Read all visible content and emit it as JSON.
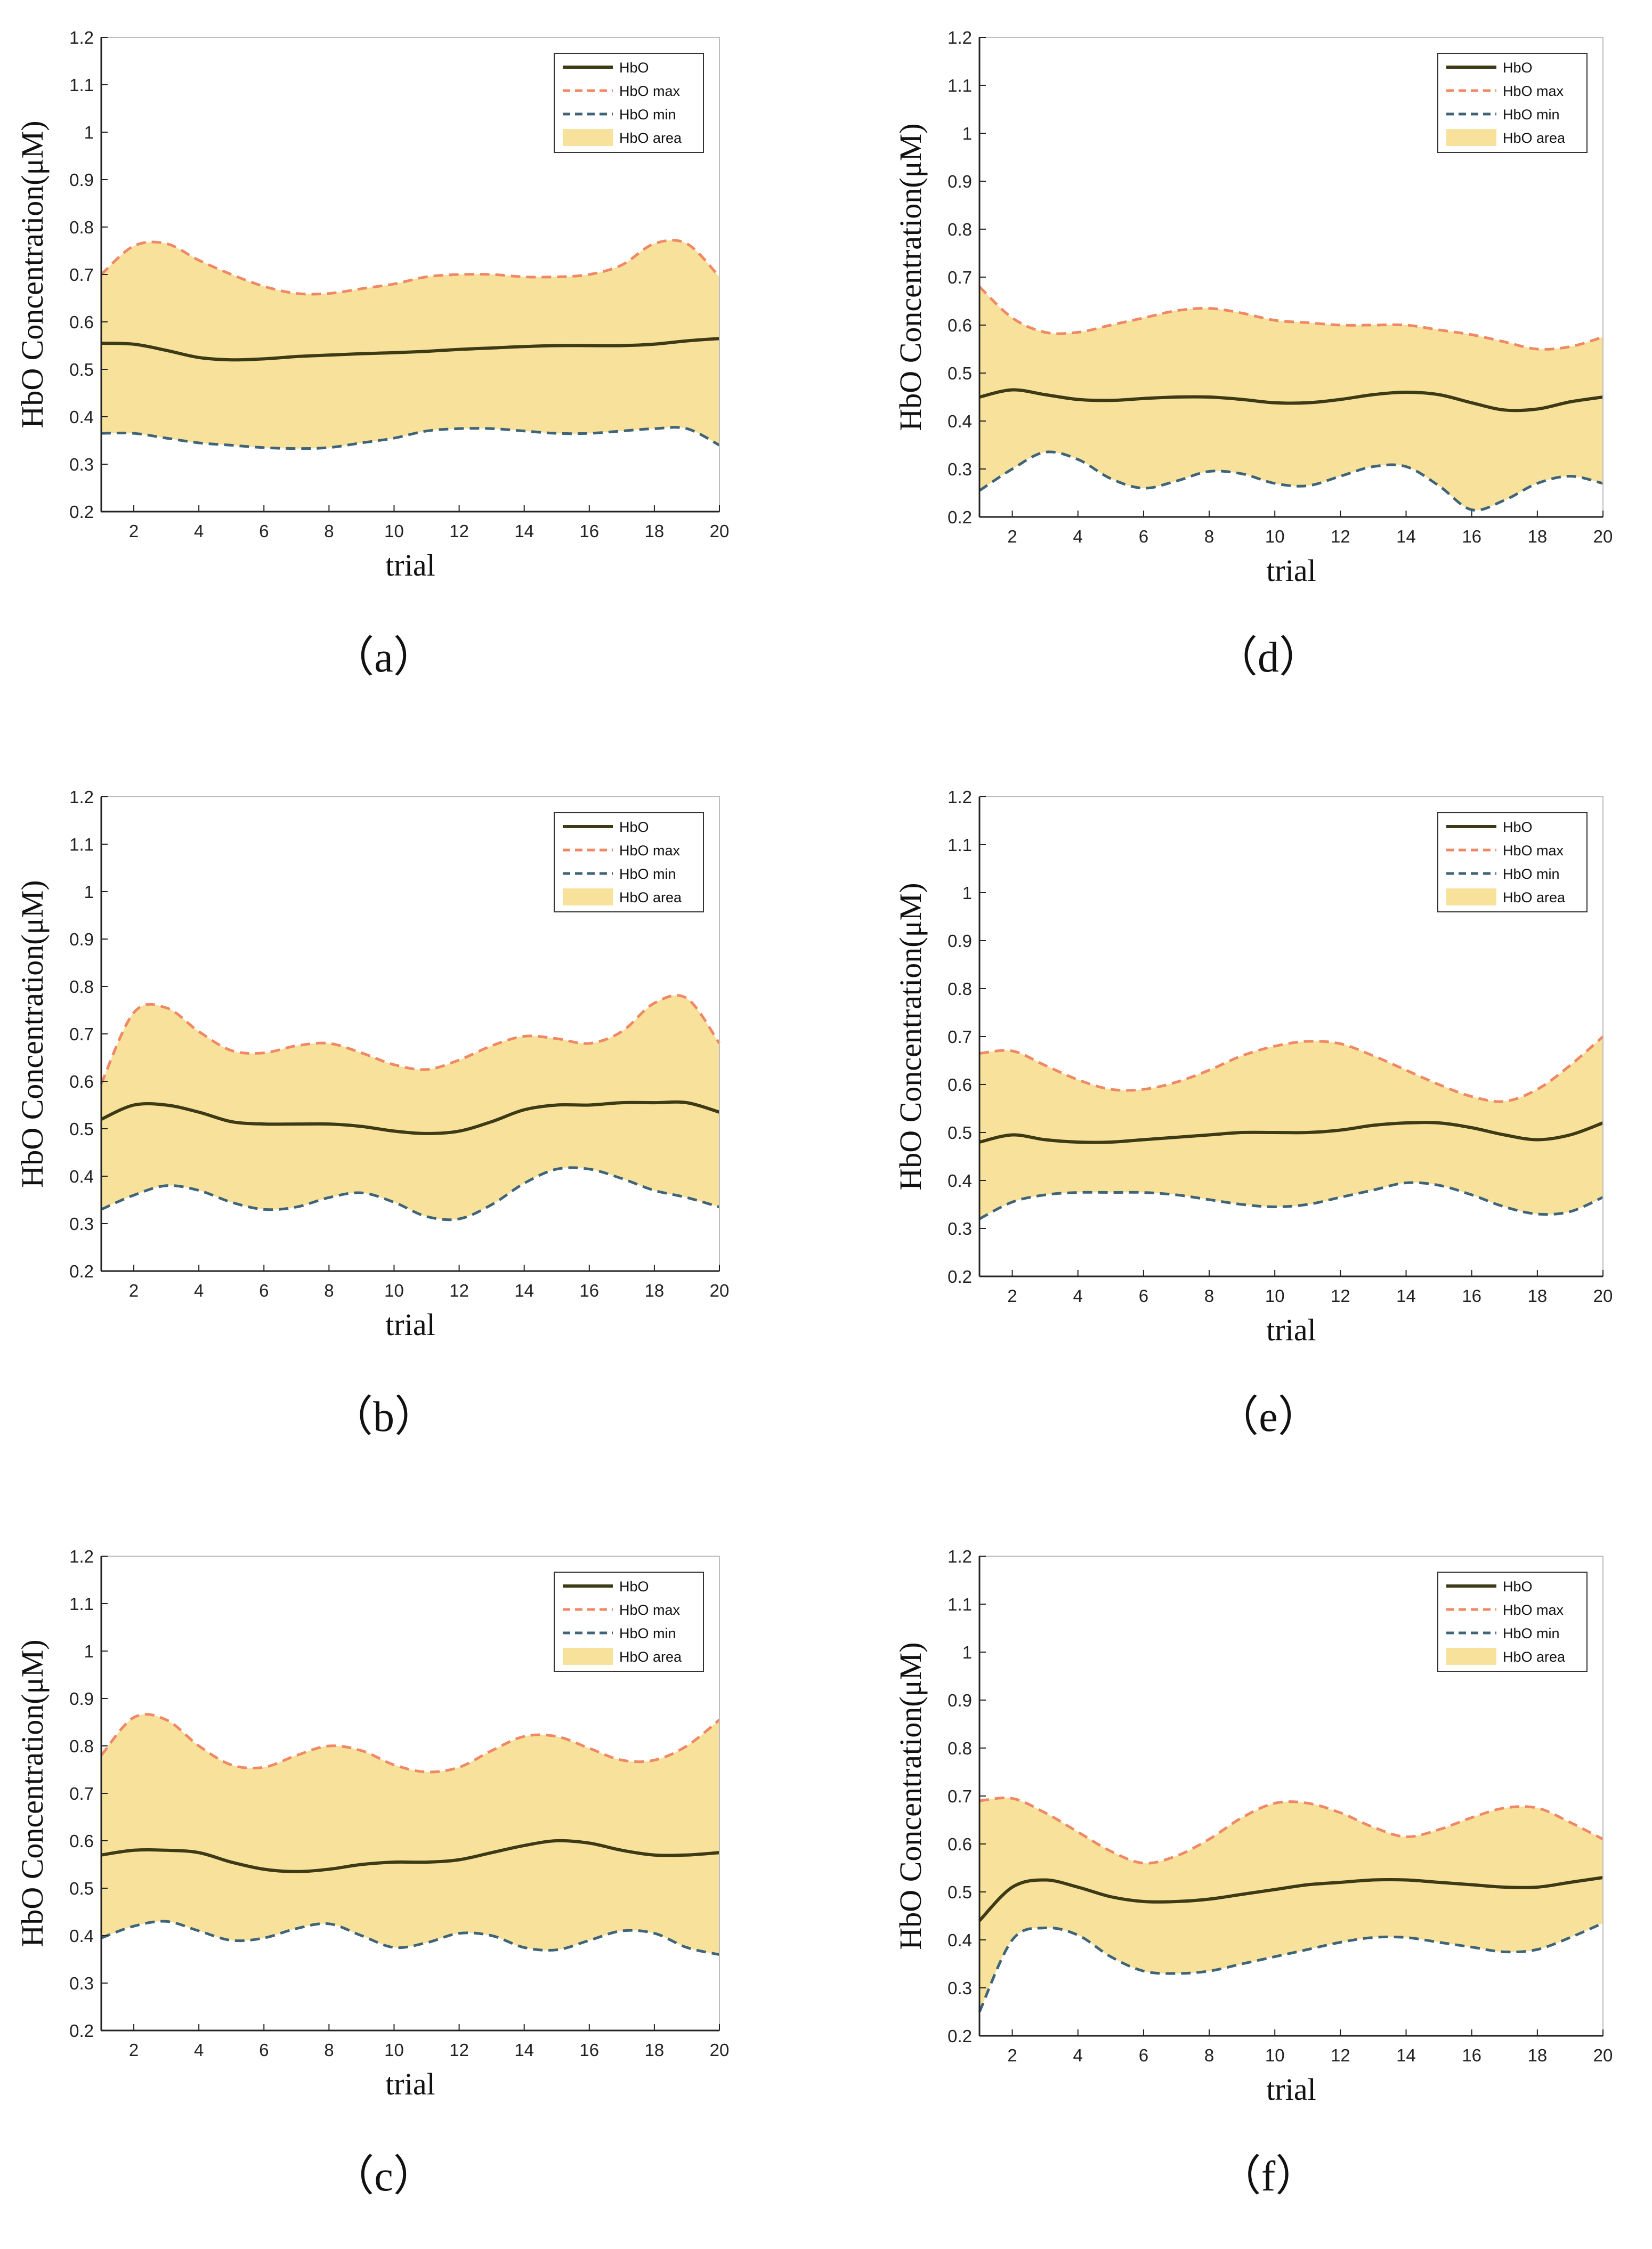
{
  "figure_title": "",
  "colors": {
    "mean": "#3d3a16",
    "max": "#f08866",
    "min": "#3f6377",
    "area": "#f8e29b",
    "axis": "#222222"
  },
  "chart_data": [
    {
      "type": "line",
      "label": "（a）",
      "xlabel": "trial",
      "ylabel": "HbO Concentration(μM)",
      "xlim": [
        1,
        20
      ],
      "ylim": [
        0.2,
        1.2
      ],
      "xticks": [
        2,
        4,
        6,
        8,
        10,
        12,
        14,
        16,
        18,
        20
      ],
      "yticks": [
        0.2,
        0.3,
        0.4,
        0.5,
        0.6,
        0.7,
        0.8,
        0.9,
        1,
        1.1,
        1.2
      ],
      "legend": [
        "HbO",
        "HbO max",
        "HbO min",
        "HbO area"
      ],
      "legend_position": "top-right",
      "x": [
        1,
        2,
        3,
        4,
        5,
        6,
        7,
        8,
        9,
        10,
        11,
        12,
        13,
        14,
        15,
        16,
        17,
        18,
        19,
        20
      ],
      "series": [
        {
          "name": "HbO",
          "values": [
            0.555,
            0.553,
            0.54,
            0.525,
            0.52,
            0.522,
            0.527,
            0.53,
            0.533,
            0.535,
            0.538,
            0.542,
            0.545,
            0.548,
            0.55,
            0.55,
            0.55,
            0.553,
            0.56,
            0.565
          ]
        },
        {
          "name": "HbO max",
          "values": [
            0.7,
            0.76,
            0.765,
            0.73,
            0.7,
            0.675,
            0.66,
            0.66,
            0.67,
            0.68,
            0.695,
            0.7,
            0.7,
            0.695,
            0.695,
            0.7,
            0.72,
            0.765,
            0.765,
            0.695
          ]
        },
        {
          "name": "HbO min",
          "values": [
            0.365,
            0.365,
            0.355,
            0.345,
            0.34,
            0.335,
            0.333,
            0.335,
            0.345,
            0.355,
            0.37,
            0.375,
            0.375,
            0.37,
            0.365,
            0.365,
            0.37,
            0.375,
            0.375,
            0.34
          ]
        }
      ]
    },
    {
      "type": "line",
      "label": "（b）",
      "xlabel": "trial",
      "ylabel": "HbO Concentration(μM)",
      "xlim": [
        1,
        20
      ],
      "ylim": [
        0.2,
        1.2
      ],
      "xticks": [
        2,
        4,
        6,
        8,
        10,
        12,
        14,
        16,
        18,
        20
      ],
      "yticks": [
        0.2,
        0.3,
        0.4,
        0.5,
        0.6,
        0.7,
        0.8,
        0.9,
        1,
        1.1,
        1.2
      ],
      "legend": [
        "HbO",
        "HbO max",
        "HbO min",
        "HbO area"
      ],
      "legend_position": "top-right",
      "x": [
        1,
        2,
        3,
        4,
        5,
        6,
        7,
        8,
        9,
        10,
        11,
        12,
        13,
        14,
        15,
        16,
        17,
        18,
        19,
        20
      ],
      "series": [
        {
          "name": "HbO",
          "values": [
            0.52,
            0.55,
            0.55,
            0.535,
            0.515,
            0.51,
            0.51,
            0.51,
            0.505,
            0.495,
            0.49,
            0.495,
            0.515,
            0.54,
            0.55,
            0.55,
            0.555,
            0.555,
            0.555,
            0.535
          ]
        },
        {
          "name": "HbO max",
          "values": [
            0.595,
            0.745,
            0.755,
            0.705,
            0.665,
            0.66,
            0.675,
            0.68,
            0.66,
            0.635,
            0.625,
            0.645,
            0.675,
            0.695,
            0.69,
            0.68,
            0.705,
            0.765,
            0.775,
            0.68
          ]
        },
        {
          "name": "HbO min",
          "values": [
            0.33,
            0.36,
            0.38,
            0.37,
            0.345,
            0.33,
            0.335,
            0.355,
            0.365,
            0.345,
            0.315,
            0.31,
            0.34,
            0.385,
            0.415,
            0.415,
            0.395,
            0.37,
            0.355,
            0.335
          ]
        }
      ]
    },
    {
      "type": "line",
      "label": "（c）",
      "xlabel": "trial",
      "ylabel": "HbO Concentration(μM)",
      "xlim": [
        1,
        20
      ],
      "ylim": [
        0.2,
        1.2
      ],
      "xticks": [
        2,
        4,
        6,
        8,
        10,
        12,
        14,
        16,
        18,
        20
      ],
      "yticks": [
        0.2,
        0.3,
        0.4,
        0.5,
        0.6,
        0.7,
        0.8,
        0.9,
        1,
        1.1,
        1.2
      ],
      "legend": [
        "HbO",
        "HbO max",
        "HbO min",
        "HbO area"
      ],
      "legend_position": "top-right",
      "x": [
        1,
        2,
        3,
        4,
        5,
        6,
        7,
        8,
        9,
        10,
        11,
        12,
        13,
        14,
        15,
        16,
        17,
        18,
        19,
        20
      ],
      "series": [
        {
          "name": "HbO",
          "values": [
            0.57,
            0.58,
            0.58,
            0.575,
            0.555,
            0.54,
            0.535,
            0.54,
            0.55,
            0.555,
            0.555,
            0.56,
            0.575,
            0.59,
            0.6,
            0.595,
            0.58,
            0.57,
            0.57,
            0.575
          ]
        },
        {
          "name": "HbO max",
          "values": [
            0.78,
            0.86,
            0.855,
            0.8,
            0.76,
            0.755,
            0.78,
            0.8,
            0.79,
            0.76,
            0.745,
            0.755,
            0.79,
            0.82,
            0.82,
            0.795,
            0.77,
            0.77,
            0.8,
            0.855
          ]
        },
        {
          "name": "HbO min",
          "values": [
            0.395,
            0.42,
            0.43,
            0.41,
            0.39,
            0.395,
            0.415,
            0.425,
            0.4,
            0.375,
            0.385,
            0.405,
            0.4,
            0.375,
            0.37,
            0.39,
            0.41,
            0.405,
            0.375,
            0.36
          ]
        }
      ]
    },
    {
      "type": "line",
      "label": "（d）",
      "xlabel": "trial",
      "ylabel": "HbO Concentration(μM)",
      "xlim": [
        1,
        20
      ],
      "ylim": [
        0.2,
        1.2
      ],
      "xticks": [
        2,
        4,
        6,
        8,
        10,
        12,
        14,
        16,
        18,
        20
      ],
      "yticks": [
        0.2,
        0.3,
        0.4,
        0.5,
        0.6,
        0.7,
        0.8,
        0.9,
        1,
        1.1,
        1.2
      ],
      "legend": [
        "HbO",
        "HbO max",
        "HbO min",
        "HbO area"
      ],
      "legend_position": "top-right",
      "x": [
        1,
        2,
        3,
        4,
        5,
        6,
        7,
        8,
        9,
        10,
        11,
        12,
        13,
        14,
        15,
        16,
        17,
        18,
        19,
        20
      ],
      "series": [
        {
          "name": "HbO",
          "values": [
            0.45,
            0.465,
            0.455,
            0.445,
            0.443,
            0.447,
            0.45,
            0.45,
            0.445,
            0.438,
            0.438,
            0.445,
            0.455,
            0.46,
            0.455,
            0.438,
            0.423,
            0.425,
            0.44,
            0.45
          ]
        },
        {
          "name": "HbO max",
          "values": [
            0.68,
            0.615,
            0.585,
            0.585,
            0.6,
            0.615,
            0.63,
            0.635,
            0.625,
            0.61,
            0.605,
            0.6,
            0.6,
            0.6,
            0.59,
            0.58,
            0.565,
            0.55,
            0.555,
            0.575
          ]
        },
        {
          "name": "HbO min",
          "values": [
            0.255,
            0.3,
            0.335,
            0.32,
            0.28,
            0.26,
            0.275,
            0.295,
            0.29,
            0.27,
            0.265,
            0.285,
            0.305,
            0.305,
            0.265,
            0.215,
            0.235,
            0.27,
            0.285,
            0.27
          ]
        }
      ]
    },
    {
      "type": "line",
      "label": "（e）",
      "xlabel": "trial",
      "ylabel": "HbO Concentration(μM)",
      "xlim": [
        1,
        20
      ],
      "ylim": [
        0.2,
        1.2
      ],
      "xticks": [
        2,
        4,
        6,
        8,
        10,
        12,
        14,
        16,
        18,
        20
      ],
      "yticks": [
        0.2,
        0.3,
        0.4,
        0.5,
        0.6,
        0.7,
        0.8,
        0.9,
        1,
        1.1,
        1.2
      ],
      "legend": [
        "HbO",
        "HbO max",
        "HbO min",
        "HbO area"
      ],
      "legend_position": "top-right",
      "x": [
        1,
        2,
        3,
        4,
        5,
        6,
        7,
        8,
        9,
        10,
        11,
        12,
        13,
        14,
        15,
        16,
        17,
        18,
        19,
        20
      ],
      "series": [
        {
          "name": "HbO",
          "values": [
            0.48,
            0.495,
            0.485,
            0.48,
            0.48,
            0.485,
            0.49,
            0.495,
            0.5,
            0.5,
            0.5,
            0.505,
            0.515,
            0.52,
            0.52,
            0.51,
            0.495,
            0.485,
            0.495,
            0.52
          ]
        },
        {
          "name": "HbO max",
          "values": [
            0.665,
            0.67,
            0.64,
            0.61,
            0.59,
            0.59,
            0.605,
            0.63,
            0.66,
            0.68,
            0.69,
            0.685,
            0.66,
            0.63,
            0.6,
            0.575,
            0.565,
            0.59,
            0.64,
            0.7
          ]
        },
        {
          "name": "HbO min",
          "values": [
            0.32,
            0.355,
            0.37,
            0.375,
            0.375,
            0.375,
            0.37,
            0.36,
            0.35,
            0.345,
            0.35,
            0.365,
            0.38,
            0.395,
            0.39,
            0.37,
            0.345,
            0.33,
            0.335,
            0.365
          ]
        }
      ]
    },
    {
      "type": "line",
      "label": "（f）",
      "xlabel": "trial",
      "ylabel": "HbO Concentration(μM)",
      "xlim": [
        1,
        20
      ],
      "ylim": [
        0.2,
        1.2
      ],
      "xticks": [
        2,
        4,
        6,
        8,
        10,
        12,
        14,
        16,
        18,
        20
      ],
      "yticks": [
        0.2,
        0.3,
        0.4,
        0.5,
        0.6,
        0.7,
        0.8,
        0.9,
        1,
        1.1,
        1.2
      ],
      "legend": [
        "HbO",
        "HbO max",
        "HbO min",
        "HbO area"
      ],
      "legend_position": "top-right",
      "x": [
        1,
        2,
        3,
        4,
        5,
        6,
        7,
        8,
        9,
        10,
        11,
        12,
        13,
        14,
        15,
        16,
        17,
        18,
        19,
        20
      ],
      "series": [
        {
          "name": "HbO",
          "values": [
            0.44,
            0.51,
            0.525,
            0.51,
            0.49,
            0.48,
            0.48,
            0.485,
            0.495,
            0.505,
            0.515,
            0.52,
            0.525,
            0.525,
            0.52,
            0.515,
            0.51,
            0.51,
            0.52,
            0.53
          ]
        },
        {
          "name": "HbO max",
          "values": [
            0.69,
            0.695,
            0.665,
            0.625,
            0.585,
            0.56,
            0.575,
            0.61,
            0.655,
            0.685,
            0.685,
            0.665,
            0.635,
            0.615,
            0.63,
            0.655,
            0.675,
            0.675,
            0.645,
            0.61
          ]
        },
        {
          "name": "HbO min",
          "values": [
            0.25,
            0.4,
            0.425,
            0.41,
            0.365,
            0.335,
            0.33,
            0.335,
            0.35,
            0.365,
            0.38,
            0.395,
            0.405,
            0.405,
            0.395,
            0.385,
            0.375,
            0.38,
            0.405,
            0.435
          ]
        }
      ]
    }
  ]
}
